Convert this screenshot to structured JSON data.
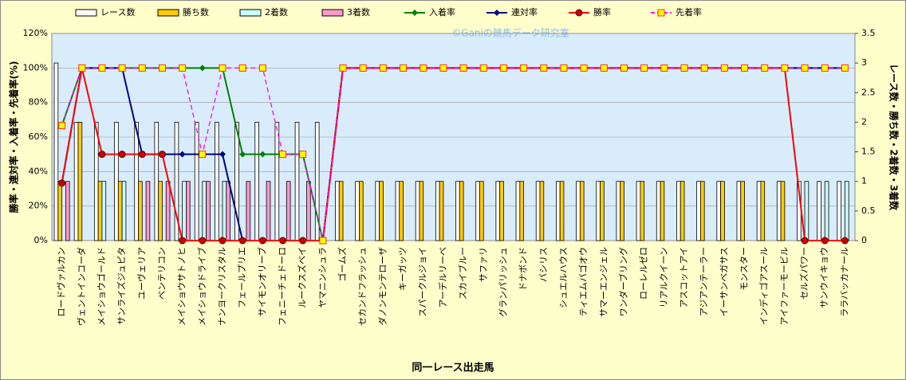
{
  "chart_data": {
    "type": "combo",
    "watermark": "©Ganiの競馬データ研究室",
    "x_label": "同一レース出走馬",
    "y_label": "勝率・連対率・入着率・先着率(%)",
    "y2_label": "レース数・勝ち数・2着数・3着数",
    "categories": [
      "ロードヴァルカン",
      "ヴェントインコーダ",
      "メイショウゴールド",
      "サンライズジュピタ",
      "ユーヴェリア",
      "ベンテリコン",
      "メイショウサトノヒ",
      "メイショウドライブ",
      "ナンヨークリスタル",
      "フェールプリエ",
      "サイモンオリーブ",
      "フェニーチェドーロ",
      "ルークスズベイ",
      "ヤマニンシュラ",
      "ゴームズ",
      "セカンドフラッシュ",
      "ダノンモンテローザ",
      "キーガッツ",
      "スパークルジョイ",
      "アーデルリーベ",
      "スカイブルー",
      "サファリ",
      "グランパリッシュ",
      "ドナボンド",
      "バシリス",
      "シュエルハウス",
      "ティエムバゴオウ",
      "サマーエンジェル",
      "ワンダーブリング",
      "ローレルゼロ",
      "リアルクイーン",
      "アスコットアイ",
      "アジアンテーラー",
      "イーサンベガサス",
      "モンスター",
      "インディゴアスール",
      "アイファーモービル",
      "セルズパワー",
      "サンウイキョウ",
      "ララバッカナール"
    ],
    "ylim": [
      0,
      120
    ],
    "yticks": [
      {
        "value": 0,
        "label": "0%"
      },
      {
        "value": 20,
        "label": "20%"
      },
      {
        "value": 40,
        "label": "40%"
      },
      {
        "value": 60,
        "label": "60%"
      },
      {
        "value": 80,
        "label": "80%"
      },
      {
        "value": 100,
        "label": "100%"
      },
      {
        "value": 120,
        "label": "120%"
      }
    ],
    "y2lim": [
      0,
      3.5
    ],
    "y2ticks": [
      0,
      0.5,
      1,
      1.5,
      2,
      2.5,
      3,
      3.5
    ],
    "grid": true,
    "series": [
      {
        "name": "レース数",
        "kind": "bar",
        "axis": "y2",
        "color": "#ffffff",
        "values": [
          3,
          2,
          2,
          2,
          2,
          2,
          2,
          2,
          2,
          2,
          2,
          2,
          2,
          2,
          1,
          1,
          1,
          1,
          1,
          1,
          1,
          1,
          1,
          1,
          1,
          1,
          1,
          1,
          1,
          1,
          1,
          1,
          1,
          1,
          1,
          1,
          1,
          1,
          1,
          1
        ]
      },
      {
        "name": "勝ち数",
        "kind": "bar",
        "axis": "y2",
        "color": "#ffcc00",
        "values": [
          1,
          2,
          1,
          1,
          1,
          1,
          0,
          0,
          0,
          0,
          0,
          0,
          0,
          0,
          1,
          1,
          1,
          1,
          1,
          1,
          1,
          1,
          1,
          1,
          1,
          1,
          1,
          1,
          1,
          1,
          1,
          1,
          1,
          1,
          1,
          1,
          1,
          0,
          0,
          0
        ]
      },
      {
        "name": "2着数",
        "kind": "bar",
        "axis": "y2",
        "color": "#ccffff",
        "values": [
          0,
          0,
          1,
          1,
          0,
          0,
          1,
          1,
          1,
          0,
          0,
          0,
          0,
          0,
          0,
          0,
          0,
          0,
          0,
          0,
          0,
          0,
          0,
          0,
          0,
          0,
          0,
          0,
          0,
          0,
          0,
          0,
          0,
          0,
          0,
          0,
          0,
          1,
          1,
          1
        ]
      },
      {
        "name": "3着数",
        "kind": "bar",
        "axis": "y2",
        "color": "#ff99cc",
        "values": [
          1,
          0,
          0,
          0,
          1,
          1,
          1,
          1,
          1,
          1,
          1,
          1,
          1,
          0,
          0,
          0,
          0,
          0,
          0,
          0,
          0,
          0,
          0,
          0,
          0,
          0,
          0,
          0,
          0,
          0,
          0,
          0,
          0,
          0,
          0,
          0,
          0,
          0,
          0,
          0
        ]
      },
      {
        "name": "入着率",
        "kind": "line",
        "marker": "diamond",
        "color": "#008000",
        "values": [
          66.7,
          100,
          100,
          100,
          100,
          100,
          100,
          100,
          100,
          50,
          50,
          50,
          50,
          0,
          100,
          100,
          100,
          100,
          100,
          100,
          100,
          100,
          100,
          100,
          100,
          100,
          100,
          100,
          100,
          100,
          100,
          100,
          100,
          100,
          100,
          100,
          100,
          100,
          100,
          100
        ]
      },
      {
        "name": "連対率",
        "kind": "line",
        "marker": "diamond",
        "color": "#000080",
        "values": [
          33.3,
          100,
          100,
          100,
          50,
          50,
          50,
          50,
          50,
          0,
          0,
          0,
          0,
          0,
          100,
          100,
          100,
          100,
          100,
          100,
          100,
          100,
          100,
          100,
          100,
          100,
          100,
          100,
          100,
          100,
          100,
          100,
          100,
          100,
          100,
          100,
          100,
          100,
          100,
          100
        ]
      },
      {
        "name": "勝率",
        "kind": "line",
        "marker": "circle",
        "color": "#ff0000",
        "values": [
          33.3,
          100,
          50,
          50,
          50,
          50,
          0,
          0,
          0,
          0,
          0,
          0,
          0,
          0,
          100,
          100,
          100,
          100,
          100,
          100,
          100,
          100,
          100,
          100,
          100,
          100,
          100,
          100,
          100,
          100,
          100,
          100,
          100,
          100,
          100,
          100,
          100,
          0,
          0,
          0
        ]
      },
      {
        "name": "先着率",
        "kind": "line",
        "marker": "square",
        "dashed": true,
        "color": "#ff00ff",
        "values": [
          66.7,
          100,
          100,
          100,
          100,
          100,
          100,
          50,
          100,
          100,
          100,
          50,
          50,
          0,
          100,
          100,
          100,
          100,
          100,
          100,
          100,
          100,
          100,
          100,
          100,
          100,
          100,
          100,
          100,
          100,
          100,
          100,
          100,
          100,
          100,
          100,
          100,
          100,
          100,
          100
        ]
      }
    ]
  }
}
